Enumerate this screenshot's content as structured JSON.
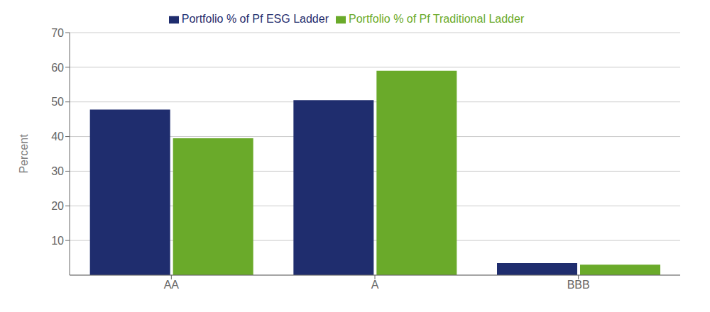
{
  "chart_data": {
    "type": "bar",
    "categories": [
      "AA",
      "A",
      "BBB"
    ],
    "series": [
      {
        "name": "Portfolio % of Pf ESG Ladder",
        "color": "#1f2d6e",
        "values": [
          47.8,
          50.5,
          3.5
        ]
      },
      {
        "name": "Portfolio % of Pf Traditional Ladder",
        "color": "#6aaa2a",
        "values": [
          39.5,
          59.0,
          3.0
        ]
      }
    ],
    "ylabel": "Percent",
    "ylim": [
      0,
      70
    ],
    "yticks": [
      10,
      20,
      30,
      40,
      50,
      60,
      70
    ],
    "grid": true,
    "legend": "top"
  }
}
